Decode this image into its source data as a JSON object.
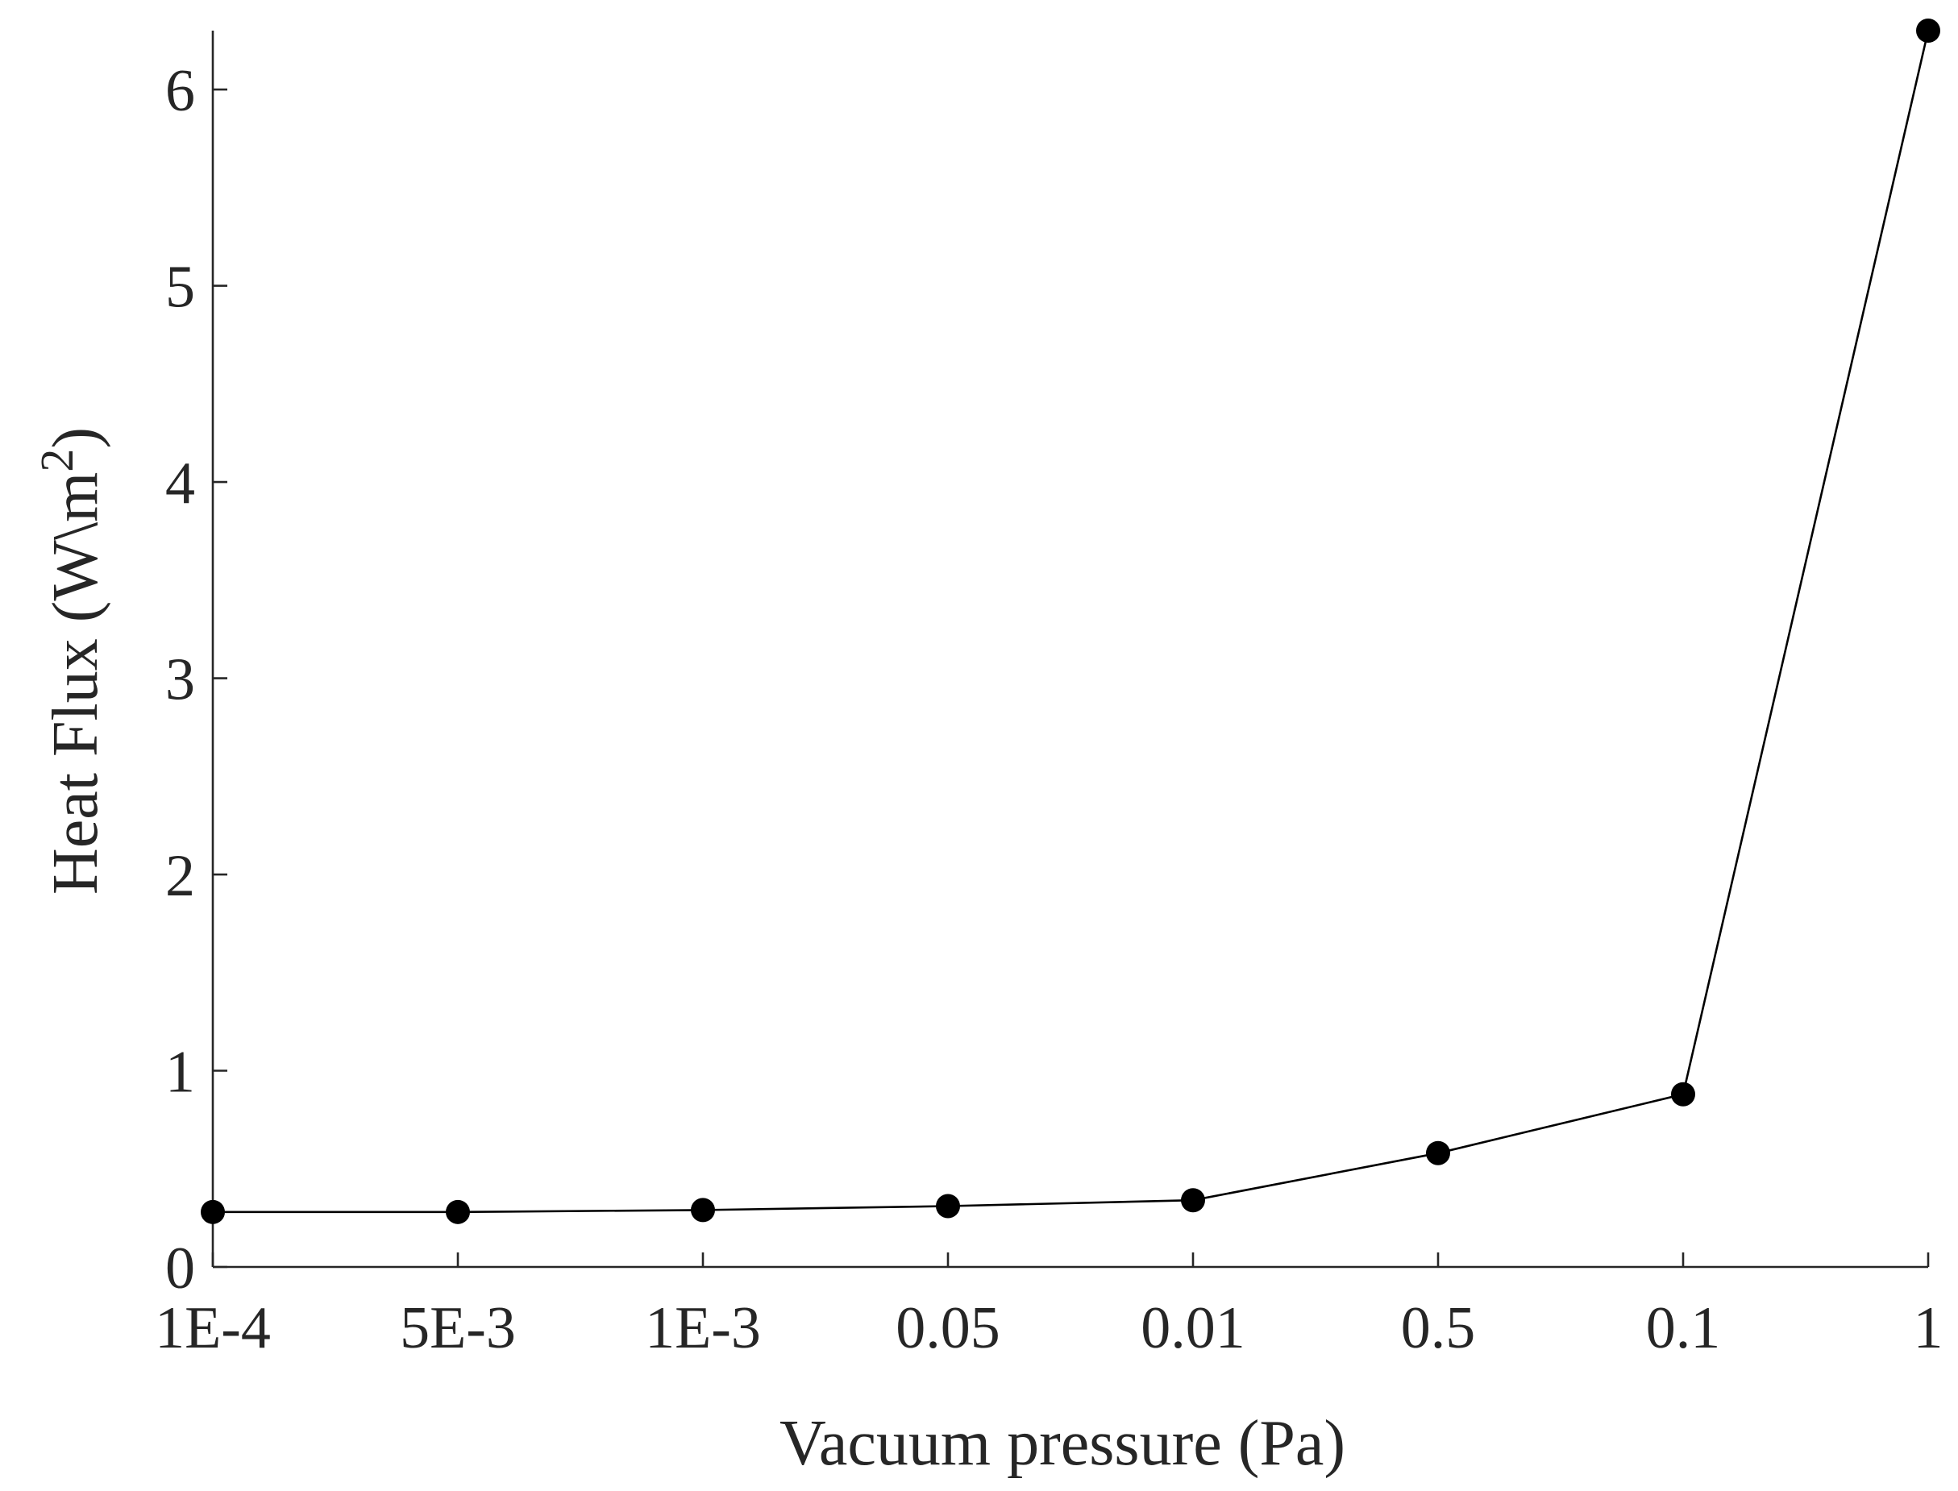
{
  "chart_data": {
    "type": "line",
    "title": "",
    "xlabel": "Vacuum pressure (Pa)",
    "ylabel": {
      "main": "Heat Flux (W\\m",
      "superscript": "2",
      "close": ")"
    },
    "categories": [
      "1E-4",
      "5E-3",
      "1E-3",
      "0.05",
      "0.01",
      "0.5",
      "0.1",
      "1"
    ],
    "series": [
      {
        "values": [
          0.28,
          0.28,
          0.29,
          0.31,
          0.34,
          0.58,
          0.88,
          6.3
        ],
        "color": "#000000",
        "marker": "filled-circle"
      }
    ],
    "yticks": [
      0,
      1,
      2,
      3,
      4,
      5,
      6
    ],
    "ylim": [
      0,
      6.3
    ],
    "grid": false,
    "legend": "none"
  },
  "colors": {
    "axis": "#262626",
    "text": "#262626",
    "series": "#000000"
  }
}
